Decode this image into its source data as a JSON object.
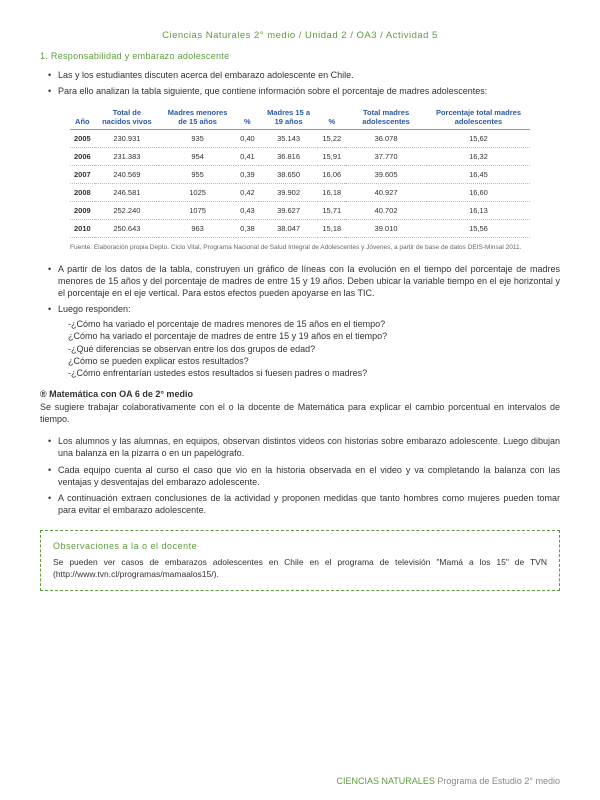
{
  "title": "Ciencias Naturales 2° medio / Unidad 2 / OA3 / Actividad 5",
  "section1": {
    "heading": "1. Responsabilidad y embarazo adolescente",
    "b1": "Las y los estudiantes discuten acerca del embarazo adolescente en Chile.",
    "b2": "Para ello analizan la tabla siguiente, que contiene información sobre el porcentaje de madres adolescentes:"
  },
  "table": {
    "headers": {
      "c0": "Año",
      "c1": "Total de nacidos vivos",
      "c2": "Madres menores de 15 años",
      "c3": "%",
      "c4": "Madres 15 a 19 años",
      "c5": "%",
      "c6": "Total madres adolescentes",
      "c7": "Porcentaje total madres adolescentes"
    },
    "rows": [
      {
        "c0": "2005",
        "c1": "230.931",
        "c2": "935",
        "c3": "0,40",
        "c4": "35.143",
        "c5": "15,22",
        "c6": "36.078",
        "c7": "15,62"
      },
      {
        "c0": "2006",
        "c1": "231.383",
        "c2": "954",
        "c3": "0,41",
        "c4": "36.816",
        "c5": "15,91",
        "c6": "37.770",
        "c7": "16,32"
      },
      {
        "c0": "2007",
        "c1": "240.569",
        "c2": "955",
        "c3": "0,39",
        "c4": "38.650",
        "c5": "16,06",
        "c6": "39.605",
        "c7": "16,45"
      },
      {
        "c0": "2008",
        "c1": "246.581",
        "c2": "1025",
        "c3": "0,42",
        "c4": "39.902",
        "c5": "16,18",
        "c6": "40.927",
        "c7": "16,60"
      },
      {
        "c0": "2009",
        "c1": "252.240",
        "c2": "1075",
        "c3": "0,43",
        "c4": "39.627",
        "c5": "15,71",
        "c6": "40.702",
        "c7": "16,13"
      },
      {
        "c0": "2010",
        "c1": "250.643",
        "c2": "963",
        "c3": "0,38",
        "c4": "38.047",
        "c5": "15,18",
        "c6": "39.010",
        "c7": "15,56"
      }
    ],
    "source": "Fuente: Elaboración propia Depto. Ciclo Vital, Programa Nacional de Salud Integral de Adolescentes y Jóvenes, a partir de base de datos DEIS-Minsal 2011."
  },
  "after": {
    "b1": "A partir de los datos de la tabla, construyen un gráfico de líneas con la evolución en el tiempo del porcentaje de madres menores de 15 años y del porcentaje de madres de entre 15 y 19 años. Deben ubicar la variable tiempo en el eje horizontal y el porcentaje en el eje vertical. Para estos efectos pueden apoyarse en las TIC.",
    "b2": "Luego responden:",
    "q1": "-¿Cómo ha variado el porcentaje de madres menores de 15 años en el tiempo?",
    "q2": "¿Cómo ha variado el porcentaje de madres de entre 15 y 19 años en el tiempo?",
    "q3": "-¿Qué diferencias se observan entre los dos grupos de edad?",
    "q4": "¿Cómo se pueden explicar estos resultados?",
    "q5": "-¿Cómo enfrentarían ustedes estos resultados si fuesen padres o madres?"
  },
  "cross": {
    "title": "® Matemática con OA 6 de 2° medio",
    "text": "Se sugiere trabajar colaborativamente con el o la docente de Matemática para explicar el cambio porcentual en intervalos de tiempo."
  },
  "part2": {
    "b1": "Los alumnos y las alumnas, en equipos, observan distintos videos con historias sobre embarazo adolescente. Luego dibujan una balanza en la pizarra o en un papelógrafo.",
    "b2": "Cada equipo cuenta al curso el caso que vio en la historia observada en el video y va completando la balanza con las ventajas y desventajas del embarazo adolescente.",
    "b3": "A continuación extraen conclusiones de la actividad y proponen medidas que tanto hombres como mujeres pueden tomar para evitar el embarazo adolescente."
  },
  "obs": {
    "title": "Observaciones a la o el docente",
    "text": "Se pueden ver casos de embarazos adolescentes en Chile en el programa de televisión \"Mamá a los 15\" de TVN (http://www.tvn.cl/programas/mamaalos15/)."
  },
  "footer": {
    "green": "CIENCIAS NATURALES",
    "gray": "    Programa de Estudio    2° medio"
  },
  "colors": {
    "accent": "#5d9b3f",
    "header_blue": "#2b5aa0",
    "text": "#333333",
    "muted": "#888888",
    "border": "#999999"
  }
}
